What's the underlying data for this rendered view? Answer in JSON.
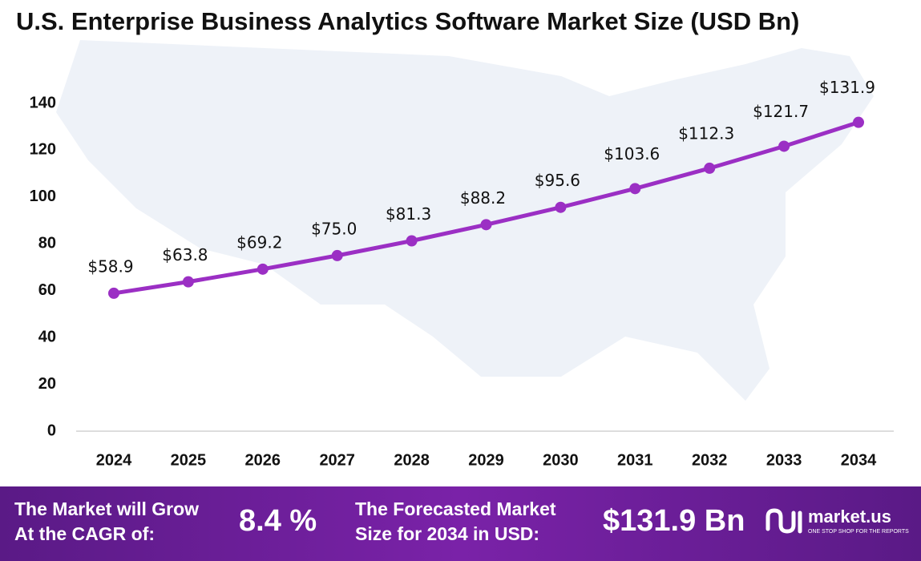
{
  "chart_data": {
    "type": "line",
    "title": "U.S. Enterprise Business Analytics Software Market Size (USD Bn)",
    "categories": [
      "2024",
      "2025",
      "2026",
      "2027",
      "2028",
      "2029",
      "2030",
      "2031",
      "2032",
      "2033",
      "2034"
    ],
    "values": [
      58.9,
      63.8,
      69.2,
      75.0,
      81.3,
      88.2,
      95.6,
      103.6,
      112.3,
      121.7,
      131.9
    ],
    "value_labels": [
      "$58.9",
      "$63.8",
      "$69.2",
      "$75.0",
      "$81.3",
      "$88.2",
      "$95.6",
      "$103.6",
      "$112.3",
      "$121.7",
      "$131.9"
    ],
    "color": "#9b2fc4",
    "ylim": [
      0,
      140
    ],
    "yticks": [
      0,
      20,
      40,
      60,
      80,
      100,
      120,
      140
    ],
    "grid": false
  },
  "footer": {
    "cagr_label": [
      "The Market will Grow",
      "At the CAGR of:"
    ],
    "cagr_value": "8.4 %",
    "forecast_label": [
      "The Forecasted Market",
      "Size for 2034 in USD:"
    ],
    "forecast_value": "$131.9 Bn",
    "brand": "market.us",
    "tagline": "ONE STOP SHOP FOR THE REPORTS"
  }
}
